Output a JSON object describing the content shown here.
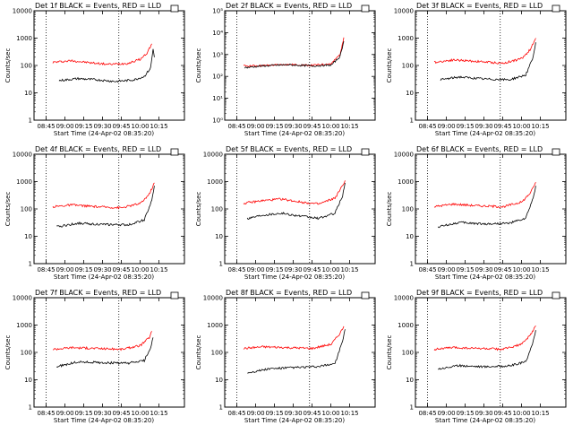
{
  "chart_data": [
    {
      "type": "line",
      "title": "Det 1f BLACK = Events, RED = LLD",
      "xlabel": "Start Time (24-Apr-02 08:35:20)",
      "ylabel": "Counts/sec",
      "yscale": "log",
      "ylim": [
        1,
        10000
      ],
      "y_ticks": [
        "1",
        "10",
        "100",
        "1000",
        "10000"
      ],
      "x_ticks": [
        "08:45",
        "09:00",
        "09:15",
        "09:30",
        "09:45",
        "10:00",
        "10:15"
      ],
      "xlim_min": [
        8,
        30
      ],
      "marker_lines_min": [
        45,
        103
      ],
      "series": [
        {
          "color": "#ff0000",
          "values": [
            {
              "x": 15,
              "y": 130
            },
            {
              "x": 30,
              "y": 150
            },
            {
              "x": 45,
              "y": 125
            },
            {
              "x": 60,
              "y": 110
            },
            {
              "x": 75,
              "y": 120
            },
            {
              "x": 85,
              "y": 170
            },
            {
              "x": 90,
              "y": 280
            },
            {
              "x": 94,
              "y": 620
            }
          ]
        },
        {
          "color": "#000000",
          "values": [
            {
              "x": 20,
              "y": 28
            },
            {
              "x": 35,
              "y": 33
            },
            {
              "x": 50,
              "y": 30
            },
            {
              "x": 65,
              "y": 26
            },
            {
              "x": 80,
              "y": 30
            },
            {
              "x": 88,
              "y": 40
            },
            {
              "x": 93,
              "y": 80
            },
            {
              "x": 95,
              "y": 400
            },
            {
              "x": 96,
              "y": 200
            }
          ]
        }
      ]
    },
    {
      "type": "line",
      "title": "Det 2f BLACK = Events, RED = LLD",
      "xlabel": "Start Time (24-Apr-02 08:35:20)",
      "ylabel": "Counts/sec",
      "yscale": "log",
      "ylim": [
        1,
        100000
      ],
      "y_ticks": [
        "10⁰",
        "10¹",
        "10²",
        "10³",
        "10⁴",
        "10⁵"
      ],
      "x_ticks": [
        "08:45",
        "09:00",
        "09:15",
        "09:30",
        "09:45",
        "10:00",
        "10:15"
      ],
      "xlim_min": [
        8,
        30
      ],
      "marker_lines_min": [
        45,
        103
      ],
      "series": [
        {
          "color": "#ff0000",
          "values": [
            {
              "x": 15,
              "y": 300
            },
            {
              "x": 30,
              "y": 310
            },
            {
              "x": 50,
              "y": 350
            },
            {
              "x": 70,
              "y": 320
            },
            {
              "x": 85,
              "y": 380
            },
            {
              "x": 92,
              "y": 1000
            },
            {
              "x": 95,
              "y": 6000
            }
          ]
        },
        {
          "color": "#000000",
          "values": [
            {
              "x": 16,
              "y": 250
            },
            {
              "x": 30,
              "y": 300
            },
            {
              "x": 50,
              "y": 340
            },
            {
              "x": 70,
              "y": 300
            },
            {
              "x": 85,
              "y": 330
            },
            {
              "x": 92,
              "y": 800
            },
            {
              "x": 95,
              "y": 4000
            }
          ]
        }
      ]
    },
    {
      "type": "line",
      "title": "Det 3f BLACK = Events, RED = LLD",
      "xlabel": "Start Time (24-Apr-02 08:35:20)",
      "ylabel": "Counts/sec",
      "yscale": "log",
      "ylim": [
        1,
        10000
      ],
      "y_ticks": [
        "1",
        "10",
        "100",
        "1000",
        "10000"
      ],
      "x_ticks": [
        "08:45",
        "09:00",
        "09:15",
        "09:30",
        "09:45",
        "10:00",
        "10:15"
      ],
      "xlim_min": [
        8,
        30
      ],
      "marker_lines_min": [
        45,
        103
      ],
      "series": [
        {
          "color": "#ff0000",
          "values": [
            {
              "x": 15,
              "y": 130
            },
            {
              "x": 30,
              "y": 160
            },
            {
              "x": 50,
              "y": 140
            },
            {
              "x": 70,
              "y": 120
            },
            {
              "x": 85,
              "y": 180
            },
            {
              "x": 92,
              "y": 400
            },
            {
              "x": 96,
              "y": 1000
            }
          ]
        },
        {
          "color": "#000000",
          "values": [
            {
              "x": 20,
              "y": 30
            },
            {
              "x": 35,
              "y": 38
            },
            {
              "x": 55,
              "y": 32
            },
            {
              "x": 75,
              "y": 30
            },
            {
              "x": 88,
              "y": 45
            },
            {
              "x": 94,
              "y": 200
            },
            {
              "x": 96,
              "y": 700
            }
          ]
        }
      ]
    },
    {
      "type": "line",
      "title": "Det 4f BLACK = Events, RED = LLD",
      "xlabel": "Start Time (24-Apr-02 08:35:20)",
      "ylabel": "Counts/sec",
      "yscale": "log",
      "ylim": [
        1,
        10000
      ],
      "y_ticks": [
        "1",
        "10",
        "100",
        "1000",
        "10000"
      ],
      "x_ticks": [
        "08:45",
        "09:00",
        "09:15",
        "09:30",
        "09:45",
        "10:00",
        "10:15"
      ],
      "xlim_min": [
        8,
        30
      ],
      "marker_lines_min": [
        45,
        103
      ],
      "series": [
        {
          "color": "#ff0000",
          "values": [
            {
              "x": 15,
              "y": 120
            },
            {
              "x": 30,
              "y": 140
            },
            {
              "x": 50,
              "y": 120
            },
            {
              "x": 70,
              "y": 110
            },
            {
              "x": 85,
              "y": 160
            },
            {
              "x": 92,
              "y": 350
            },
            {
              "x": 96,
              "y": 900
            }
          ]
        },
        {
          "color": "#000000",
          "values": [
            {
              "x": 18,
              "y": 22
            },
            {
              "x": 35,
              "y": 30
            },
            {
              "x": 55,
              "y": 27
            },
            {
              "x": 75,
              "y": 26
            },
            {
              "x": 88,
              "y": 40
            },
            {
              "x": 94,
              "y": 200
            },
            {
              "x": 96,
              "y": 700
            }
          ]
        }
      ]
    },
    {
      "type": "line",
      "title": "Det 5f BLACK = Events, RED = LLD",
      "xlabel": "Start Time (24-Apr-02 08:35:20)",
      "ylabel": "Counts/sec",
      "yscale": "log",
      "ylim": [
        1,
        10000
      ],
      "y_ticks": [
        "1",
        "10",
        "100",
        "1000",
        "10000"
      ],
      "x_ticks": [
        "08:45",
        "09:00",
        "09:15",
        "09:30",
        "09:45",
        "10:00",
        "10:15"
      ],
      "xlim_min": [
        8,
        30
      ],
      "marker_lines_min": [
        45,
        103
      ],
      "series": [
        {
          "color": "#ff0000",
          "values": [
            {
              "x": 15,
              "y": 160
            },
            {
              "x": 30,
              "y": 200
            },
            {
              "x": 45,
              "y": 230
            },
            {
              "x": 60,
              "y": 180
            },
            {
              "x": 75,
              "y": 150
            },
            {
              "x": 88,
              "y": 250
            },
            {
              "x": 94,
              "y": 700
            },
            {
              "x": 96,
              "y": 1100
            }
          ]
        },
        {
          "color": "#000000",
          "values": [
            {
              "x": 18,
              "y": 45
            },
            {
              "x": 30,
              "y": 60
            },
            {
              "x": 45,
              "y": 70
            },
            {
              "x": 60,
              "y": 55
            },
            {
              "x": 75,
              "y": 45
            },
            {
              "x": 88,
              "y": 70
            },
            {
              "x": 94,
              "y": 300
            },
            {
              "x": 96,
              "y": 900
            }
          ]
        }
      ]
    },
    {
      "type": "line",
      "title": "Det 6f BLACK = Events, RED = LLD",
      "xlabel": "Start Time (24-Apr-02 08:35:20)",
      "ylabel": "Counts/sec",
      "yscale": "log",
      "ylim": [
        1,
        10000
      ],
      "y_ticks": [
        "1",
        "10",
        "100",
        "1000",
        "10000"
      ],
      "x_ticks": [
        "08:45",
        "09:00",
        "09:15",
        "09:30",
        "09:45",
        "10:00",
        "10:15"
      ],
      "xlim_min": [
        8,
        30
      ],
      "marker_lines_min": [
        45,
        103
      ],
      "series": [
        {
          "color": "#ff0000",
          "values": [
            {
              "x": 15,
              "y": 120
            },
            {
              "x": 30,
              "y": 150
            },
            {
              "x": 50,
              "y": 130
            },
            {
              "x": 70,
              "y": 120
            },
            {
              "x": 85,
              "y": 180
            },
            {
              "x": 92,
              "y": 400
            },
            {
              "x": 96,
              "y": 950
            }
          ]
        },
        {
          "color": "#000000",
          "values": [
            {
              "x": 18,
              "y": 22
            },
            {
              "x": 35,
              "y": 32
            },
            {
              "x": 55,
              "y": 28
            },
            {
              "x": 75,
              "y": 30
            },
            {
              "x": 88,
              "y": 45
            },
            {
              "x": 94,
              "y": 250
            },
            {
              "x": 96,
              "y": 700
            }
          ]
        }
      ]
    },
    {
      "type": "line",
      "title": "Det 7f BLACK = Events, RED = LLD",
      "xlabel": "Start Time (24-Apr-02 08:35:20)",
      "ylabel": "Counts/sec",
      "yscale": "log",
      "ylim": [
        1,
        10000
      ],
      "y_ticks": [
        "1",
        "10",
        "100",
        "1000",
        "10000"
      ],
      "x_ticks": [
        "08:45",
        "09:00",
        "09:15",
        "09:30",
        "09:45",
        "10:00",
        "10:15"
      ],
      "xlim_min": [
        8,
        30
      ],
      "marker_lines_min": [
        45,
        103
      ],
      "series": [
        {
          "color": "#ff0000",
          "values": [
            {
              "x": 15,
              "y": 130
            },
            {
              "x": 30,
              "y": 150
            },
            {
              "x": 50,
              "y": 140
            },
            {
              "x": 70,
              "y": 130
            },
            {
              "x": 85,
              "y": 180
            },
            {
              "x": 92,
              "y": 350
            },
            {
              "x": 94,
              "y": 600
            }
          ]
        },
        {
          "color": "#000000",
          "values": [
            {
              "x": 18,
              "y": 30
            },
            {
              "x": 35,
              "y": 45
            },
            {
              "x": 55,
              "y": 42
            },
            {
              "x": 75,
              "y": 40
            },
            {
              "x": 88,
              "y": 50
            },
            {
              "x": 93,
              "y": 150
            },
            {
              "x": 95,
              "y": 350
            }
          ]
        }
      ]
    },
    {
      "type": "line",
      "title": "Det 8f BLACK = Events, RED = LLD",
      "xlabel": "Start Time (24-Apr-02 08:35:20)",
      "ylabel": "Counts/sec",
      "yscale": "log",
      "ylim": [
        1,
        10000
      ],
      "y_ticks": [
        "1",
        "10",
        "100",
        "1000",
        "10000"
      ],
      "x_ticks": [
        "08:45",
        "09:00",
        "09:15",
        "09:30",
        "09:45",
        "10:00",
        "10:15"
      ],
      "xlim_min": [
        8,
        30
      ],
      "marker_lines_min": [
        45,
        103
      ],
      "series": [
        {
          "color": "#ff0000",
          "values": [
            {
              "x": 15,
              "y": 140
            },
            {
              "x": 30,
              "y": 160
            },
            {
              "x": 50,
              "y": 150
            },
            {
              "x": 70,
              "y": 140
            },
            {
              "x": 85,
              "y": 200
            },
            {
              "x": 92,
              "y": 500
            },
            {
              "x": 95,
              "y": 900
            }
          ]
        },
        {
          "color": "#000000",
          "values": [
            {
              "x": 18,
              "y": 18
            },
            {
              "x": 35,
              "y": 25
            },
            {
              "x": 55,
              "y": 28
            },
            {
              "x": 75,
              "y": 30
            },
            {
              "x": 88,
              "y": 40
            },
            {
              "x": 94,
              "y": 250
            },
            {
              "x": 96,
              "y": 700
            }
          ]
        }
      ]
    },
    {
      "type": "line",
      "title": "Det 9f BLACK = Events, RED = LLD",
      "xlabel": "Start Time (24-Apr-02 08:35:20)",
      "ylabel": "Counts/sec",
      "yscale": "log",
      "ylim": [
        1,
        10000
      ],
      "y_ticks": [
        "1",
        "10",
        "100",
        "1000",
        "10000"
      ],
      "x_ticks": [
        "08:45",
        "09:00",
        "09:15",
        "09:30",
        "09:45",
        "10:00",
        "10:15"
      ],
      "xlim_min": [
        8,
        30
      ],
      "marker_lines_min": [
        45,
        103
      ],
      "series": [
        {
          "color": "#ff0000",
          "values": [
            {
              "x": 15,
              "y": 130
            },
            {
              "x": 30,
              "y": 150
            },
            {
              "x": 50,
              "y": 140
            },
            {
              "x": 70,
              "y": 130
            },
            {
              "x": 85,
              "y": 200
            },
            {
              "x": 92,
              "y": 450
            },
            {
              "x": 96,
              "y": 950
            }
          ]
        },
        {
          "color": "#000000",
          "values": [
            {
              "x": 18,
              "y": 25
            },
            {
              "x": 35,
              "y": 33
            },
            {
              "x": 55,
              "y": 30
            },
            {
              "x": 75,
              "y": 32
            },
            {
              "x": 88,
              "y": 45
            },
            {
              "x": 94,
              "y": 250
            },
            {
              "x": 96,
              "y": 650
            }
          ]
        }
      ]
    }
  ]
}
